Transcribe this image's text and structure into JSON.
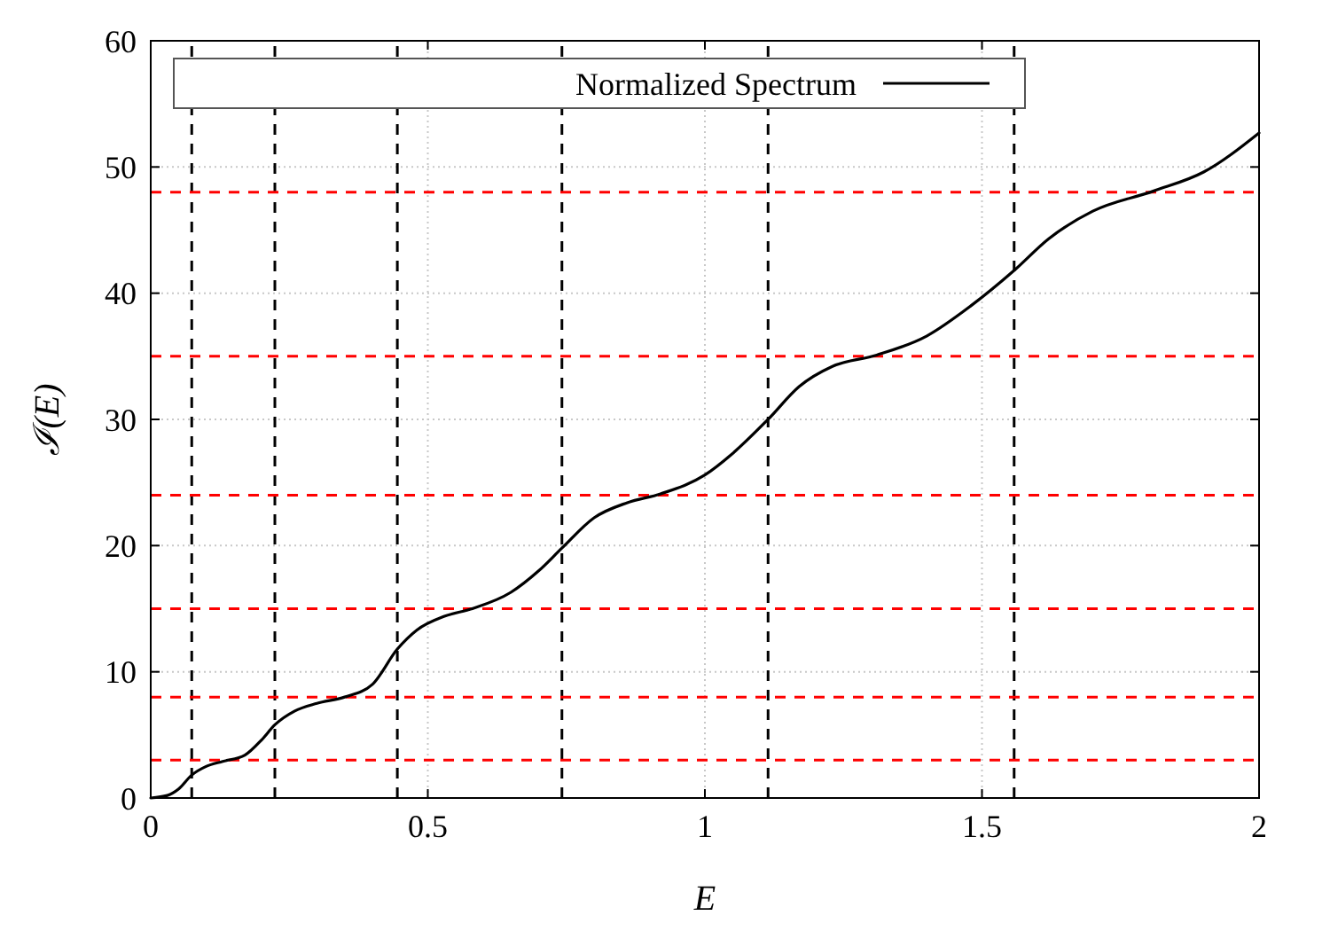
{
  "chart_data": {
    "type": "line",
    "xlabel": "E",
    "ylabel": "ℐ(E)",
    "xlim": [
      0,
      2
    ],
    "ylim": [
      0,
      60
    ],
    "xticks": [
      0,
      0.5,
      1,
      1.5,
      2
    ],
    "yticks": [
      0,
      10,
      20,
      30,
      40,
      50,
      60
    ],
    "grid": true,
    "legend": "top",
    "line_style": "solid",
    "marker": "none",
    "series": [
      {
        "name": "Normalized Spectrum",
        "color": "#000000",
        "x": [
          0,
          0.03,
          0.05,
          0.0736,
          0.1,
          0.13,
          0.17,
          0.2,
          0.224,
          0.26,
          0.3,
          0.35,
          0.4,
          0.445,
          0.48,
          0.53,
          0.58,
          0.65,
          0.7,
          0.742,
          0.8,
          0.86,
          0.92,
          1.0,
          1.05,
          1.114,
          1.17,
          1.23,
          1.31,
          1.4,
          1.48,
          1.558,
          1.62,
          1.7,
          1.81,
          1.9,
          2.0
        ],
        "values": [
          0,
          0.2,
          0.7,
          1.8,
          2.5,
          2.9,
          3.4,
          4.6,
          5.8,
          6.9,
          7.5,
          8.0,
          9.0,
          11.8,
          13.3,
          14.4,
          15.0,
          16.3,
          18.0,
          19.8,
          22.2,
          23.4,
          24.1,
          25.6,
          27.3,
          30.0,
          32.6,
          34.2,
          35.1,
          36.6,
          39.0,
          41.8,
          44.3,
          46.5,
          48.1,
          49.6,
          52.7
        ]
      }
    ],
    "ref_lines": [
      {
        "axis": "x",
        "value": 0.074,
        "color": "#000000",
        "line_style": "dashed"
      },
      {
        "axis": "x",
        "value": 0.224,
        "color": "#000000",
        "line_style": "dashed"
      },
      {
        "axis": "x",
        "value": 0.445,
        "color": "#000000",
        "line_style": "dashed"
      },
      {
        "axis": "x",
        "value": 0.742,
        "color": "#000000",
        "line_style": "dashed"
      },
      {
        "axis": "x",
        "value": 1.114,
        "color": "#000000",
        "line_style": "dashed"
      },
      {
        "axis": "x",
        "value": 1.558,
        "color": "#000000",
        "line_style": "dashed"
      },
      {
        "axis": "y",
        "value": 3,
        "color": "#ff0000",
        "line_style": "dashed"
      },
      {
        "axis": "y",
        "value": 8,
        "color": "#ff0000",
        "line_style": "dashed"
      },
      {
        "axis": "y",
        "value": 15,
        "color": "#ff0000",
        "line_style": "dashed"
      },
      {
        "axis": "y",
        "value": 24,
        "color": "#ff0000",
        "line_style": "dashed"
      },
      {
        "axis": "y",
        "value": 35,
        "color": "#ff0000",
        "line_style": "dashed"
      },
      {
        "axis": "y",
        "value": 48,
        "color": "#ff0000",
        "line_style": "dashed"
      }
    ]
  }
}
